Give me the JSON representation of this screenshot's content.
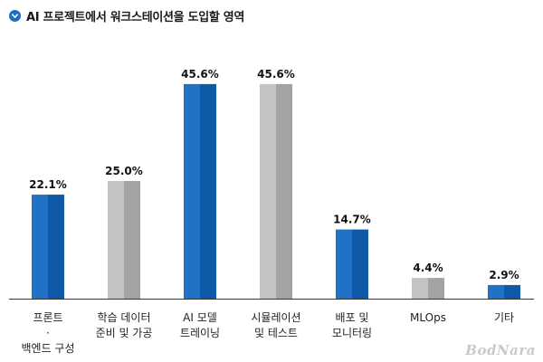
{
  "header": {
    "icon": "arrow-down-circle-icon",
    "title": "AI 프로젝트에서 워크스테이션을 도입할 영역"
  },
  "colors": {
    "blue_light": "#1f72c6",
    "blue_dark": "#0f5aa6",
    "gray_light": "#c3c3c3",
    "gray_dark": "#a3a3a3",
    "axis": "#333333",
    "icon": "#1f6fc0"
  },
  "chart_data": {
    "type": "bar",
    "title": "AI 프로젝트에서 워크스테이션을 도입할 영역",
    "categories": [
      [
        "프론트",
        "·",
        "백엔드 구성"
      ],
      [
        "학습 데이터",
        "준비 및 가공"
      ],
      [
        "AI 모델",
        "트레이닝"
      ],
      [
        "시뮬레이션",
        "및 테스트"
      ],
      [
        "배포 및",
        "모니터링"
      ],
      [
        "MLOps"
      ],
      [
        "기타"
      ]
    ],
    "values": [
      22.1,
      25.0,
      45.6,
      45.6,
      14.7,
      4.4,
      2.9
    ],
    "value_labels": [
      "22.1%",
      "25.0%",
      "45.6%",
      "45.6%",
      "14.7%",
      "4.4%",
      "2.9%"
    ],
    "bar_colors": [
      "blue",
      "gray",
      "blue",
      "gray",
      "blue",
      "gray",
      "blue"
    ],
    "ylim": [
      0,
      50
    ],
    "xlabel": "",
    "ylabel": "",
    "grid": false,
    "legend": "none"
  },
  "watermark": "BodNara"
}
